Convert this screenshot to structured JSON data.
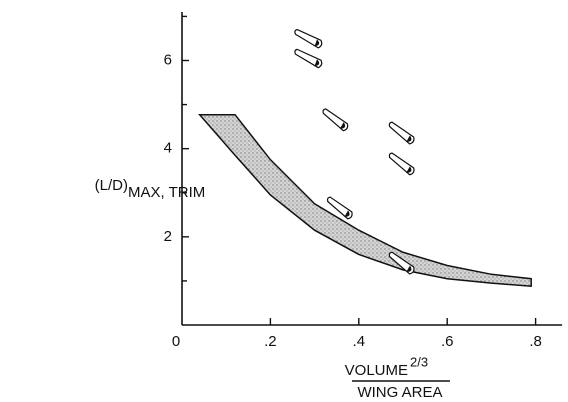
{
  "chart_data": {
    "type": "band",
    "y_label": "(L/D)",
    "y_label_sub": "MAX, TRIM",
    "x_label_top": "VOLUME",
    "x_label_sup": "2/3",
    "x_label_bottom": "WING AREA",
    "xlim": [
      0,
      0.86
    ],
    "ylim": [
      0,
      7.1
    ],
    "xticks": [
      0,
      {
        "value": 0.2,
        "label": ".2"
      },
      {
        "value": 0.4,
        "label": ".4"
      },
      {
        "value": 0.6,
        "label": ".6"
      },
      {
        "value": 0.8,
        "label": ".8"
      }
    ],
    "yticks": [
      2,
      4,
      6
    ],
    "yminorticks": [
      1,
      3,
      5,
      7
    ],
    "band": {
      "x": [
        0.04,
        0.12,
        0.2,
        0.3,
        0.4,
        0.5,
        0.6,
        0.7,
        0.79
      ],
      "upper": [
        4.77,
        4.77,
        3.75,
        2.75,
        2.15,
        1.65,
        1.35,
        1.15,
        1.05
      ],
      "lower": [
        4.77,
        3.85,
        2.95,
        2.15,
        1.6,
        1.25,
        1.05,
        0.95,
        0.88
      ],
      "color": "#c8c8c8"
    },
    "points": {
      "x": [
        0.29,
        0.29,
        0.35,
        0.5,
        0.5,
        0.36,
        0.5
      ],
      "values": [
        6.45,
        6.0,
        4.6,
        4.3,
        3.6,
        2.6,
        1.35
      ]
    }
  }
}
